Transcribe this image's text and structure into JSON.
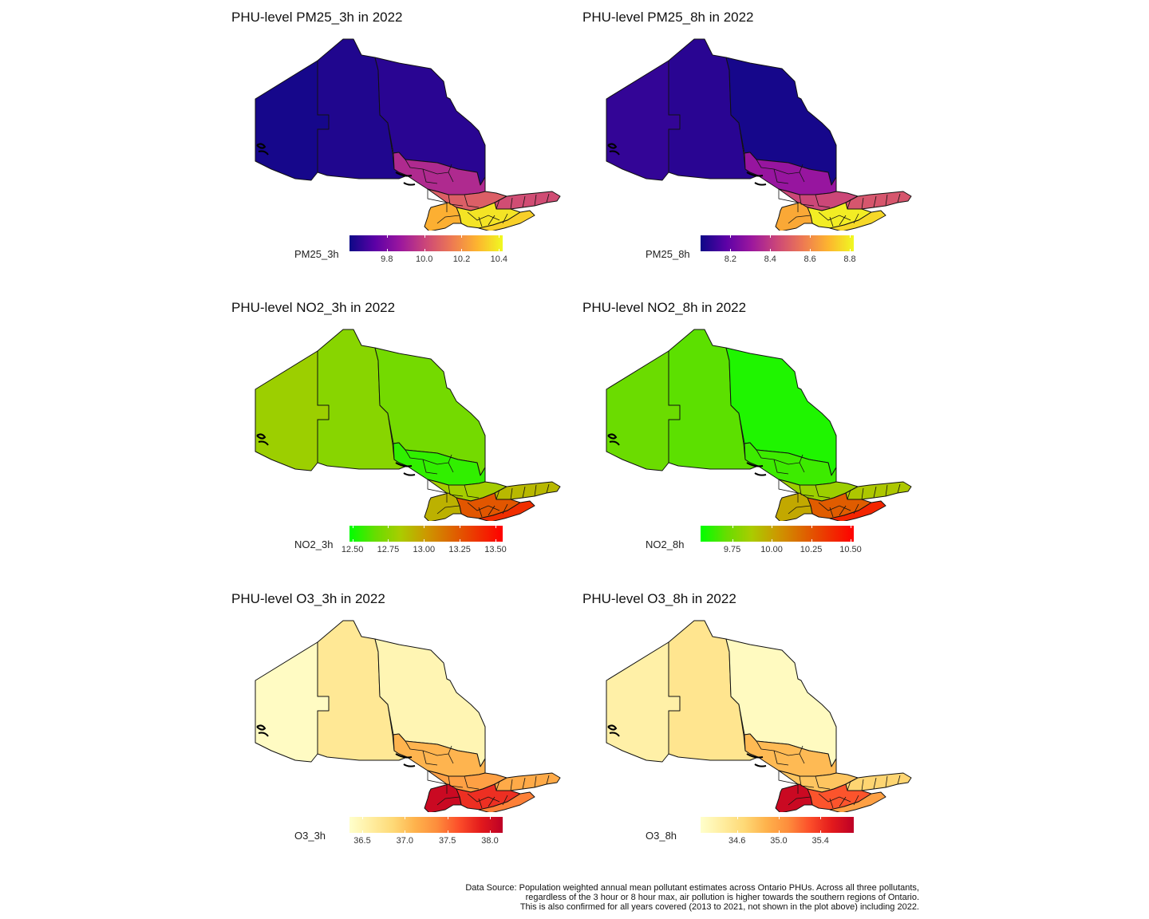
{
  "panels": [
    {
      "title": "PHU-level PM25_3h in 2022",
      "legend_label": "PM25_3h",
      "palette": [
        "#0d0887",
        "#5c01a6",
        "#9c179e",
        "#cc4778",
        "#ed7953",
        "#fdb42f",
        "#f0f921"
      ],
      "range": [
        9.6,
        10.42
      ],
      "ticks": [
        {
          "value": 9.8,
          "label": "9.8"
        },
        {
          "value": 10.0,
          "label": "10.0"
        },
        {
          "value": 10.2,
          "label": "10.2"
        },
        {
          "value": 10.4,
          "label": "10.4"
        }
      ],
      "region_fill": {
        "northwest": 0.02,
        "north_central": 0.04,
        "northeast": 0.06,
        "upper_band": 0.4,
        "mid_band": 0.58,
        "east": 0.52,
        "south_west": 0.82,
        "south_core": 0.95,
        "south_east": 0.9
      }
    },
    {
      "title": "PHU-level PM25_8h in 2022",
      "legend_label": "PM25_8h",
      "palette": [
        "#0d0887",
        "#5c01a6",
        "#9c179e",
        "#cc4778",
        "#ed7953",
        "#fdb42f",
        "#f0f921"
      ],
      "range": [
        8.05,
        8.82
      ],
      "ticks": [
        {
          "value": 8.2,
          "label": "8.2"
        },
        {
          "value": 8.4,
          "label": "8.4"
        },
        {
          "value": 8.6,
          "label": "8.6"
        },
        {
          "value": 8.8,
          "label": "8.8"
        }
      ],
      "region_fill": {
        "northwest": 0.08,
        "north_central": 0.06,
        "northeast": 0.02,
        "upper_band": 0.32,
        "mid_band": 0.5,
        "east": 0.55,
        "south_west": 0.8,
        "south_core": 0.97,
        "south_east": 0.92
      }
    },
    {
      "title": "PHU-level NO2_3h in 2022",
      "legend_label": "NO2_3h",
      "palette": [
        "#00ff00",
        "#66dd00",
        "#aacc00",
        "#cc9900",
        "#dd6600",
        "#ee3300",
        "#ff0000"
      ],
      "range": [
        12.48,
        13.55
      ],
      "ticks": [
        {
          "value": 12.5,
          "label": "12.50"
        },
        {
          "value": 12.75,
          "label": "12.75"
        },
        {
          "value": 13.0,
          "label": "13.00"
        },
        {
          "value": 13.25,
          "label": "13.25"
        },
        {
          "value": 13.5,
          "label": "13.50"
        }
      ],
      "region_fill": {
        "northwest": 0.3,
        "north_central": 0.25,
        "northeast": 0.2,
        "upper_band": 0.08,
        "mid_band": 0.32,
        "east": 0.4,
        "south_west": 0.42,
        "south_core": 0.72,
        "south_east": 0.85
      }
    },
    {
      "title": "PHU-level NO2_8h in 2022",
      "legend_label": "NO2_8h",
      "palette": [
        "#00ff00",
        "#66dd00",
        "#aacc00",
        "#cc9900",
        "#dd6600",
        "#ee3300",
        "#ff0000"
      ],
      "range": [
        9.55,
        10.52
      ],
      "ticks": [
        {
          "value": 9.75,
          "label": "9.75"
        },
        {
          "value": 10.0,
          "label": "10.00"
        },
        {
          "value": 10.25,
          "label": "10.25"
        },
        {
          "value": 10.5,
          "label": "10.50"
        }
      ],
      "region_fill": {
        "northwest": 0.18,
        "north_central": 0.15,
        "northeast": 0.05,
        "upper_band": 0.1,
        "mid_band": 0.3,
        "east": 0.35,
        "south_west": 0.45,
        "south_core": 0.7,
        "south_east": 0.88
      }
    },
    {
      "title": "PHU-level O3_3h in 2022",
      "legend_label": "O3_3h",
      "palette": [
        "#ffffcc",
        "#ffeda0",
        "#fed976",
        "#feb24c",
        "#fd8d3c",
        "#fc4e2a",
        "#e31a1c",
        "#bd0026"
      ],
      "range": [
        36.35,
        38.15
      ],
      "ticks": [
        {
          "value": 36.5,
          "label": "36.5"
        },
        {
          "value": 37.0,
          "label": "37.0"
        },
        {
          "value": 37.5,
          "label": "37.5"
        },
        {
          "value": 38.0,
          "label": "38.0"
        }
      ],
      "region_fill": {
        "northwest": 0.03,
        "north_central": 0.18,
        "northeast": 0.08,
        "upper_band": 0.42,
        "mid_band": 0.5,
        "east": 0.46,
        "south_west": 0.95,
        "south_core": 0.8,
        "south_east": 0.6
      }
    },
    {
      "title": "PHU-level O3_8h in 2022",
      "legend_label": "O3_8h",
      "palette": [
        "#ffffcc",
        "#ffeda0",
        "#fed976",
        "#feb24c",
        "#fd8d3c",
        "#fc4e2a",
        "#e31a1c",
        "#bd0026"
      ],
      "range": [
        34.25,
        35.72
      ],
      "ticks": [
        {
          "value": 34.6,
          "label": "34.6"
        },
        {
          "value": 35.0,
          "label": "35.0"
        },
        {
          "value": 35.4,
          "label": "35.4"
        }
      ],
      "region_fill": {
        "northwest": 0.12,
        "north_central": 0.2,
        "northeast": 0.04,
        "upper_band": 0.4,
        "mid_band": 0.36,
        "east": 0.3,
        "south_west": 0.95,
        "south_core": 0.7,
        "south_east": 0.5
      }
    }
  ],
  "footnote": [
    "Data Source: Population weighted annual mean pollutant estimates across Ontario PHUs. Across all three pollutants,",
    "regardless of the 3 hour or 8 hour max, air pollution is higher towards the southern regions of Ontario.",
    "This is also confirmed for all years covered (2013 to 2021, not shown in the plot above) including 2022."
  ]
}
